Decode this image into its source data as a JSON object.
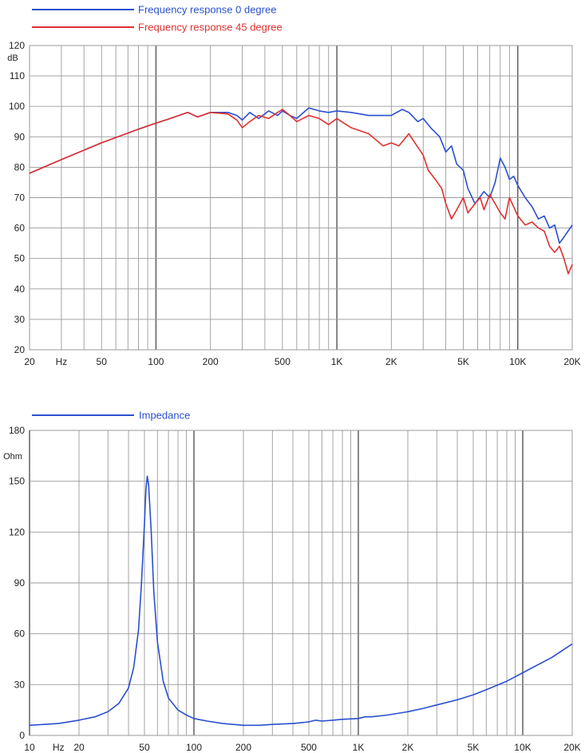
{
  "chart_data": [
    {
      "type": "line",
      "title": "",
      "xlabel": "",
      "ylabel": "dB",
      "x_scale": "log",
      "xlim": [
        20,
        20000
      ],
      "ylim": [
        20,
        120
      ],
      "grid": true,
      "legend_position": "top-left",
      "x_ticks": [
        {
          "v": 20,
          "label": "20"
        },
        {
          "v": 30,
          "label": "Hz"
        },
        {
          "v": 50,
          "label": "50"
        },
        {
          "v": 100,
          "label": "100"
        },
        {
          "v": 200,
          "label": "200"
        },
        {
          "v": 500,
          "label": "500"
        },
        {
          "v": 1000,
          "label": "1K"
        },
        {
          "v": 2000,
          "label": "2K"
        },
        {
          "v": 5000,
          "label": "5K"
        },
        {
          "v": 10000,
          "label": "10K"
        },
        {
          "v": 20000,
          "label": "20K"
        }
      ],
      "y_ticks": [
        {
          "v": 20,
          "label": "20"
        },
        {
          "v": 30,
          "label": "30"
        },
        {
          "v": 40,
          "label": "40"
        },
        {
          "v": 50,
          "label": "50"
        },
        {
          "v": 60,
          "label": "60"
        },
        {
          "v": 70,
          "label": "70"
        },
        {
          "v": 80,
          "label": "80"
        },
        {
          "v": 90,
          "label": "90"
        },
        {
          "v": 100,
          "label": "100"
        },
        {
          "v": 110,
          "label": "110"
        },
        {
          "v": 120,
          "label": "120"
        }
      ],
      "series": [
        {
          "name": "Frequency response 0 degree",
          "color": "#2a4fcf",
          "x": [
            20,
            30,
            50,
            80,
            100,
            120,
            150,
            170,
            200,
            250,
            280,
            300,
            330,
            370,
            420,
            470,
            500,
            550,
            600,
            700,
            800,
            900,
            1000,
            1200,
            1500,
            2000,
            2300,
            2500,
            2800,
            3000,
            3300,
            3700,
            4000,
            4300,
            4600,
            5000,
            5300,
            5800,
            6500,
            7000,
            7500,
            8000,
            8500,
            9000,
            9500,
            10000,
            11000,
            12000,
            13000,
            14000,
            15000,
            16000,
            17000,
            18000,
            20000
          ],
          "values": [
            78,
            82.5,
            88,
            92.5,
            94.5,
            96,
            98,
            96.5,
            98,
            98,
            97,
            95.5,
            98,
            96,
            98.5,
            97,
            98.5,
            97,
            96,
            99.5,
            98.5,
            98,
            98.5,
            98,
            97,
            97,
            99,
            98,
            95,
            96,
            93,
            90,
            85,
            87,
            81,
            79,
            73,
            68,
            72,
            70,
            75,
            83,
            80,
            76,
            77,
            74,
            70,
            67,
            63,
            64,
            60,
            61,
            55,
            57,
            61
          ]
        },
        {
          "name": "Frequency response 45 degree",
          "color": "#e03030",
          "x": [
            20,
            30,
            50,
            80,
            100,
            120,
            150,
            170,
            200,
            250,
            280,
            300,
            330,
            370,
            420,
            470,
            500,
            550,
            600,
            700,
            800,
            900,
            1000,
            1200,
            1500,
            1800,
            2000,
            2200,
            2500,
            2700,
            3000,
            3200,
            3500,
            3800,
            4000,
            4300,
            4600,
            5000,
            5300,
            5800,
            6200,
            6500,
            7000,
            7500,
            8000,
            8500,
            9000,
            10000,
            11000,
            12000,
            13000,
            14000,
            15000,
            16000,
            17000,
            18000,
            19000,
            20000
          ],
          "values": [
            78,
            82.5,
            88,
            92.5,
            94.5,
            96,
            98,
            96.5,
            98,
            97.5,
            95.5,
            93,
            95,
            97,
            96,
            98,
            99,
            97,
            95,
            97,
            96,
            94,
            96,
            93,
            91,
            87,
            88,
            87,
            91,
            88,
            84,
            79,
            76,
            73,
            68,
            63,
            66,
            70,
            65,
            68,
            70,
            66,
            71,
            68,
            65,
            63,
            70,
            64,
            61,
            62,
            60,
            59,
            54,
            52,
            54,
            50,
            45,
            48
          ]
        }
      ]
    },
    {
      "type": "line",
      "title": "",
      "xlabel": "",
      "ylabel": "Ohm",
      "x_scale": "log",
      "xlim": [
        10,
        20000
      ],
      "ylim": [
        0,
        180
      ],
      "grid": true,
      "legend_position": "top-left",
      "x_ticks": [
        {
          "v": 10,
          "label": "10"
        },
        {
          "v": 15,
          "label": "Hz"
        },
        {
          "v": 20,
          "label": "20"
        },
        {
          "v": 50,
          "label": "50"
        },
        {
          "v": 100,
          "label": "100"
        },
        {
          "v": 200,
          "label": "200"
        },
        {
          "v": 500,
          "label": "500"
        },
        {
          "v": 1000,
          "label": "1K"
        },
        {
          "v": 2000,
          "label": "2K"
        },
        {
          "v": 5000,
          "label": "5K"
        },
        {
          "v": 10000,
          "label": "10K"
        },
        {
          "v": 20000,
          "label": "20K"
        }
      ],
      "y_ticks": [
        {
          "v": 0,
          "label": "0"
        },
        {
          "v": 30,
          "label": "30"
        },
        {
          "v": 60,
          "label": "60"
        },
        {
          "v": 90,
          "label": "90"
        },
        {
          "v": 120,
          "label": "120"
        },
        {
          "v": 150,
          "label": "150"
        },
        {
          "v": 180,
          "label": "180"
        }
      ],
      "series": [
        {
          "name": "Impedance",
          "color": "#2a4fcf",
          "x": [
            10,
            15,
            20,
            25,
            30,
            35,
            40,
            43,
            46,
            48,
            50,
            51,
            52,
            53,
            55,
            57,
            60,
            65,
            70,
            80,
            90,
            100,
            120,
            150,
            200,
            250,
            300,
            400,
            500,
            550,
            600,
            700,
            800,
            1000,
            1100,
            1200,
            1500,
            2000,
            2500,
            3000,
            4000,
            5000,
            6000,
            8000,
            10000,
            15000,
            20000
          ],
          "values": [
            6,
            7,
            9,
            11,
            14,
            19,
            28,
            40,
            62,
            90,
            125,
            145,
            153,
            148,
            120,
            85,
            55,
            32,
            22,
            15,
            12,
            10,
            8.5,
            7,
            6,
            6,
            6.5,
            7,
            8,
            9,
            8.5,
            9,
            9.5,
            10,
            11,
            11,
            12,
            14,
            16,
            18,
            21,
            24,
            27,
            32,
            37,
            46,
            54
          ]
        }
      ]
    }
  ]
}
